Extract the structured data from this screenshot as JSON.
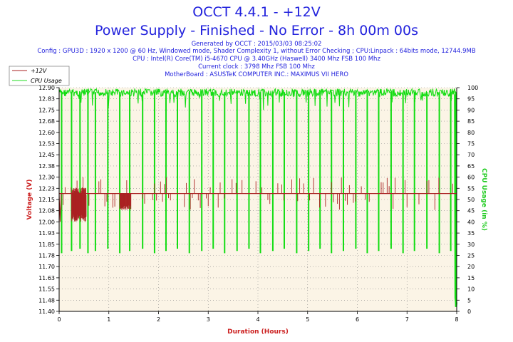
{
  "header": {
    "title": "OCCT 4.4.1 - +12V",
    "subtitle": "Power Supply - Finished - No Error - 8h 00m 00s",
    "info_lines": [
      "Generated by OCCT : 2015/03/03 08:25:02",
      "Config : GPU3D : 1920 x 1200 @ 60 Hz, Windowed mode, Shader Complexity 1, without Error Checking ; CPU:Linpack : 64bits mode, 12744.9MB",
      "CPU : Intel(R) Core(TM) i5-4670 CPU @ 3.40GHz (Haswell) 3400 Mhz FSB 100 Mhz",
      "Current clock : 3798 Mhz FSB 100 Mhz",
      "MotherBoard : ASUSTeK COMPUTER INC.: MAXIMUS VII HERO"
    ]
  },
  "legend": [
    {
      "label": "+12V",
      "color": "#aa2222"
    },
    {
      "label": "CPU Usage",
      "color": "#22dd22"
    }
  ],
  "colors": {
    "plot_bg": "#fbf4e6",
    "voltage": "#aa2222",
    "cpu": "#11dd11",
    "title": "#2222dd"
  },
  "chart_data": {
    "type": "line",
    "xlabel": "Duration (Hours)",
    "ylabel": "Voltage (V)",
    "y2label": "CPU Usage (in %)",
    "xlim": [
      0,
      8
    ],
    "ylim": [
      11.4,
      12.9
    ],
    "y2lim": [
      0,
      100
    ],
    "x_ticks": [
      "0",
      "1",
      "2",
      "3",
      "4",
      "5",
      "6",
      "7",
      "8"
    ],
    "y_ticks": [
      "12.90",
      "12.83",
      "12.75",
      "12.68",
      "12.60",
      "12.53",
      "12.45",
      "12.38",
      "12.30",
      "12.23",
      "12.15",
      "12.08",
      "12.00",
      "11.93",
      "11.85",
      "11.78",
      "11.70",
      "11.63",
      "11.55",
      "11.48",
      "11.40"
    ],
    "y2_ticks": [
      "100",
      "95",
      "90",
      "85",
      "80",
      "75",
      "70",
      "65",
      "60",
      "55",
      "50",
      "45",
      "40",
      "35",
      "30",
      "25",
      "20",
      "15",
      "10",
      "5",
      "0"
    ],
    "series": [
      {
        "name": "+12V",
        "baseline": 12.19,
        "range": [
          12.0,
          12.3
        ],
        "note": "Stable around 12.19 V with frequent excursions between 12.00 and 12.30 V"
      },
      {
        "name": "CPU Usage",
        "baseline": 98,
        "dip_hours": [
          0.05,
          0.25,
          0.42,
          0.58,
          0.73,
          0.98,
          1.22,
          1.42,
          1.68,
          1.92,
          2.15,
          2.38,
          2.62,
          2.87,
          3.1,
          3.33,
          3.58,
          3.82,
          4.05,
          4.3,
          4.53,
          4.78,
          5.02,
          5.25,
          5.48,
          5.72,
          5.97,
          6.2,
          6.43,
          6.68,
          6.92,
          7.15,
          7.4,
          7.65,
          7.88,
          7.98
        ],
        "dip_min": 26,
        "note": "Near 100% with periodic drops to ~26-28%, final drop to ~2% at 8h"
      }
    ]
  }
}
